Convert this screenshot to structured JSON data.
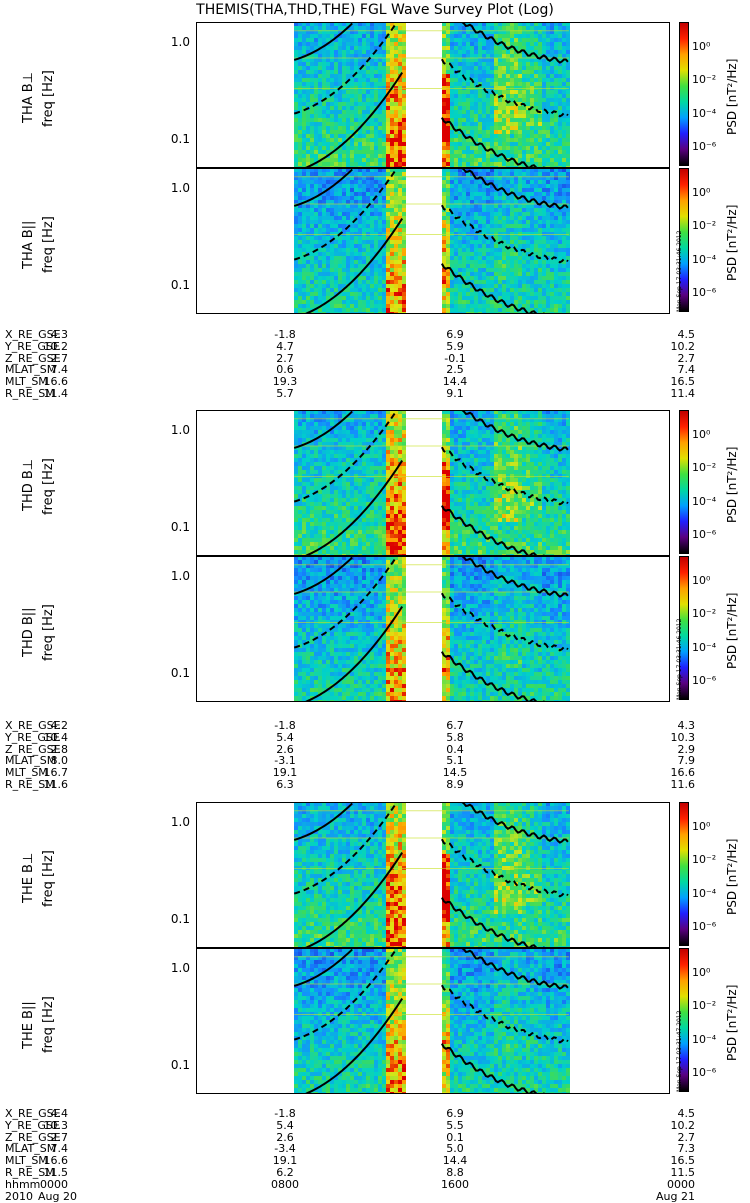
{
  "title": "THEMIS(THA,THD,THE) FGL Wave Survey Plot (Log)",
  "colorbar": {
    "label": "PSD [nT²/Hz]",
    "ticks": [
      "10⁰",
      "10⁻²",
      "10⁻⁴",
      "10⁻⁶"
    ],
    "tick_exponents": [
      0,
      -2,
      -4,
      -6
    ],
    "colors": [
      "#000000",
      "#5a0080",
      "#2020ff",
      "#00a0ff",
      "#00d8a0",
      "#40e040",
      "#e0e000",
      "#ffa000",
      "#ff2000",
      "#c00000"
    ]
  },
  "stamps": [
    "Mon Sep 17 03:31:46 2012",
    "Mon Sep 17 03:31:46 2012",
    "Mon Sep 17 03:31:47 2012"
  ],
  "chart_data": [
    {
      "type": "heatmap",
      "ylabel": "freq [Hz]",
      "title": "THA B⊥",
      "yscale": "log",
      "yticks": [
        1.0,
        0.1
      ],
      "ytick_labels": [
        "1.0",
        "0.1"
      ],
      "xrange": [
        "2010-08-20 00:00",
        "2010-08-21 00:00"
      ],
      "data_gaps": [
        [
          "00:00",
          "05:00"
        ],
        [
          "10:30",
          "12:30"
        ],
        [
          "19:00",
          "24:00"
        ]
      ]
    },
    {
      "type": "heatmap",
      "ylabel": "freq [Hz]",
      "title": "THA B||",
      "yscale": "log",
      "yticks": [
        1.0,
        0.1
      ],
      "ytick_labels": [
        "1.0",
        "0.1"
      ]
    },
    {
      "type": "heatmap",
      "ylabel": "freq [Hz]",
      "title": "THD B⊥",
      "yscale": "log",
      "yticks": [
        1.0,
        0.1
      ],
      "ytick_labels": [
        "1.0",
        "0.1"
      ]
    },
    {
      "type": "heatmap",
      "ylabel": "freq [Hz]",
      "title": "THD B||",
      "yscale": "log",
      "yticks": [
        1.0,
        0.1
      ],
      "ytick_labels": [
        "1.0",
        "0.1"
      ]
    },
    {
      "type": "heatmap",
      "ylabel": "freq [Hz]",
      "title": "THE B⊥",
      "yscale": "log",
      "yticks": [
        1.0,
        0.1
      ],
      "ytick_labels": [
        "1.0",
        "0.1"
      ]
    },
    {
      "type": "heatmap",
      "ylabel": "freq [Hz]",
      "title": "THE B||",
      "yscale": "log",
      "yticks": [
        1.0,
        0.1
      ],
      "ytick_labels": [
        "1.0",
        "0.1"
      ]
    }
  ],
  "ephemeris": [
    {
      "rows": [
        {
          "name": "X_RE_GSE",
          "values": [
            "4.3",
            "-1.8",
            "6.9",
            "4.5"
          ]
        },
        {
          "name": "Y_RE_GSE",
          "values": [
            "10.2",
            "4.7",
            "5.9",
            "10.2"
          ]
        },
        {
          "name": "Z_RE_GSE",
          "values": [
            "2.7",
            "2.7",
            "-0.1",
            "2.7"
          ]
        },
        {
          "name": "MLAT_SM",
          "values": [
            "7.4",
            "0.6",
            "2.5",
            "7.4"
          ]
        },
        {
          "name": "MLT_SM",
          "values": [
            "16.6",
            "19.3",
            "14.4",
            "16.5"
          ]
        },
        {
          "name": "R_RE_SM",
          "values": [
            "11.4",
            "5.7",
            "9.1",
            "11.4"
          ]
        }
      ]
    },
    {
      "rows": [
        {
          "name": "X_RE_GSE",
          "values": [
            "4.2",
            "-1.8",
            "6.7",
            "4.3"
          ]
        },
        {
          "name": "Y_RE_GSE",
          "values": [
            "10.4",
            "5.4",
            "5.8",
            "10.3"
          ]
        },
        {
          "name": "Z_RE_GSE",
          "values": [
            "2.8",
            "2.6",
            "0.4",
            "2.9"
          ]
        },
        {
          "name": "MLAT_SM",
          "values": [
            "8.0",
            "-3.1",
            "5.1",
            "7.9"
          ]
        },
        {
          "name": "MLT_SM",
          "values": [
            "16.7",
            "19.1",
            "14.5",
            "16.6"
          ]
        },
        {
          "name": "R_RE_SM",
          "values": [
            "11.6",
            "6.3",
            "8.9",
            "11.6"
          ]
        }
      ]
    },
    {
      "rows": [
        {
          "name": "X_RE_GSE",
          "values": [
            "4.4",
            "-1.8",
            "6.9",
            "4.5"
          ]
        },
        {
          "name": "Y_RE_GSE",
          "values": [
            "10.3",
            "5.4",
            "5.5",
            "10.2"
          ]
        },
        {
          "name": "Z_RE_GSE",
          "values": [
            "2.7",
            "2.6",
            "0.1",
            "2.7"
          ]
        },
        {
          "name": "MLAT_SM",
          "values": [
            "7.4",
            "-3.4",
            "5.0",
            "7.3"
          ]
        },
        {
          "name": "MLT_SM",
          "values": [
            "16.6",
            "19.1",
            "14.4",
            "16.5"
          ]
        },
        {
          "name": "R_RE_SM",
          "values": [
            "11.5",
            "6.2",
            "8.8",
            "11.5"
          ]
        },
        {
          "name": "hhmm",
          "values": [
            "0000",
            "0800",
            "1600",
            "0000"
          ]
        },
        {
          "name": "2010",
          "values": [
            "Aug 20",
            "",
            "",
            "Aug 21"
          ]
        }
      ]
    }
  ]
}
